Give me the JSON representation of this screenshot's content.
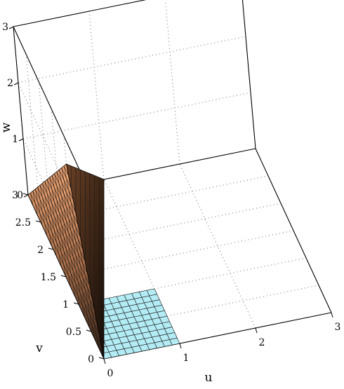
{
  "chart_data": {
    "type": "surface3d",
    "title": "",
    "xlabel": "u",
    "ylabel": "v",
    "zlabel": "w",
    "xlim": [
      0,
      3
    ],
    "ylim": [
      0,
      3
    ],
    "zlim": [
      0,
      3
    ],
    "xticks": [
      "0",
      "1",
      "2",
      "3"
    ],
    "yticks": [
      "0",
      "0.5",
      "1",
      "1.5",
      "2",
      "2.5",
      "3"
    ],
    "zticks": [
      "0",
      "1",
      "2",
      "3"
    ],
    "grid": true,
    "series": [
      {
        "kind": "floor-mesh",
        "u_range": [
          0,
          1
        ],
        "v_range": [
          0,
          1
        ],
        "w": 0,
        "divisions": 10,
        "face_color": "#b3ecf5",
        "edge_color": "#000000"
      },
      {
        "kind": "surface",
        "vertices": [
          {
            "u": 0,
            "v": 0,
            "w": 0
          },
          {
            "u": 0,
            "v": 1,
            "w": 2.5
          },
          {
            "u": 0,
            "v": 3,
            "w": 0
          },
          {
            "u": 1,
            "v": 3,
            "w": 0
          }
        ],
        "colormap": "copper",
        "edge_color": "#000000"
      }
    ]
  }
}
